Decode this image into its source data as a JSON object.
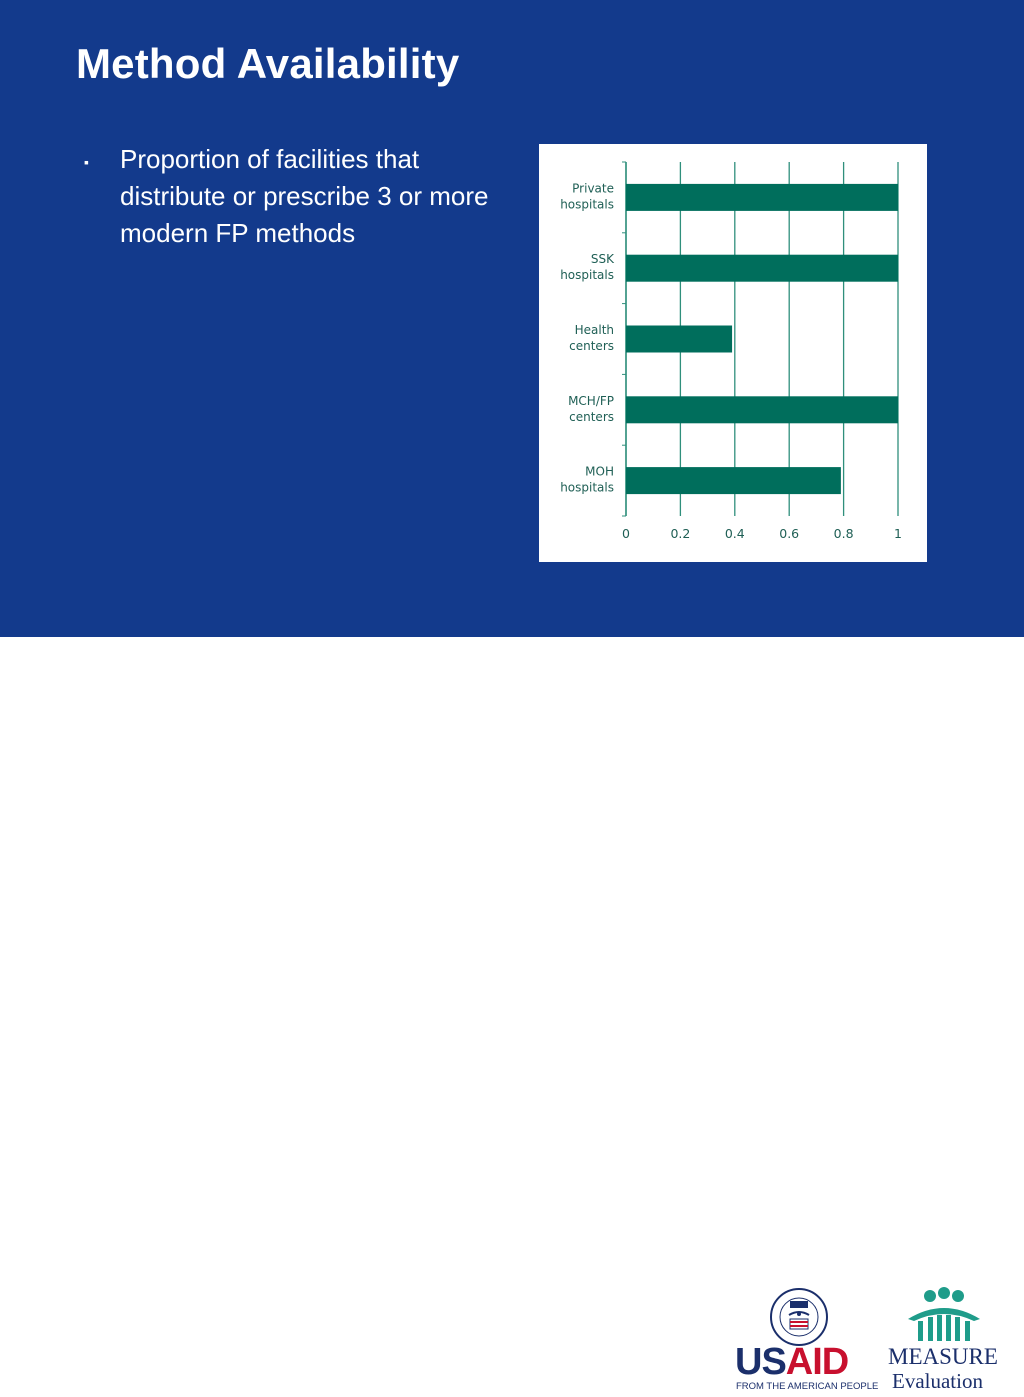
{
  "slide": {
    "title": "Method Availability",
    "bullet": "Proportion of facilities that distribute or prescribe 3 or more modern FP methods"
  },
  "chart_data": {
    "type": "bar",
    "orientation": "horizontal",
    "categories": [
      [
        "Private",
        "hospitals"
      ],
      [
        "SSK",
        "hospitals"
      ],
      [
        "Health",
        "centers"
      ],
      [
        "MCH/FP",
        "centers"
      ],
      [
        "MOH",
        "hospitals"
      ]
    ],
    "values": [
      1.0,
      1.0,
      0.39,
      1.0,
      0.79
    ],
    "xlim": [
      0,
      1
    ],
    "xticks": [
      "0",
      "0.2",
      "0.4",
      "0.6",
      "0.8",
      "1"
    ],
    "xtick_values": [
      0,
      0.2,
      0.4,
      0.6,
      0.8,
      1
    ],
    "grid": true,
    "colors": {
      "bar": "#006e5c",
      "axis": "#2f8f7c",
      "label": "#1f5f55"
    }
  },
  "logos": {
    "usaid": {
      "word_us": "US",
      "word_aid": "AID",
      "tagline": "FROM THE AMERICAN PEOPLE"
    },
    "measure": {
      "word": "MEASURE",
      "sub": "Evaluation"
    }
  }
}
